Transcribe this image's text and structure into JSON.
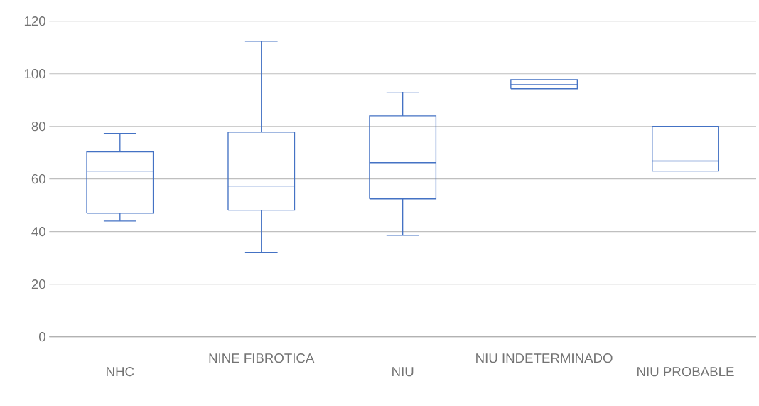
{
  "chart_data": {
    "type": "box",
    "categories": [
      "NHC",
      "NINE FIBROTICA",
      "NIU",
      "NIU INDETERMINADO",
      "NIU PROBABLE"
    ],
    "boxes": [
      {
        "low": 44,
        "q1": 47,
        "median": 63,
        "q3": 70.3,
        "high": 77.3
      },
      {
        "low": 32,
        "q1": 48.1,
        "median": 57.3,
        "q3": 77.8,
        "high": 112.4
      },
      {
        "low": 38.6,
        "q1": 52.4,
        "median": 66.2,
        "q3": 84,
        "high": 93
      },
      {
        "low": 94.3,
        "q1": 94.3,
        "median": 95.9,
        "q3": 97.8,
        "high": 97.8
      },
      {
        "low": 63,
        "q1": 63,
        "median": 66.8,
        "q3": 80,
        "high": 80
      }
    ],
    "color": "#4472c4",
    "ylim": [
      0,
      120
    ],
    "yticks": [
      0,
      20,
      40,
      60,
      80,
      100,
      120
    ],
    "grid": "y"
  }
}
